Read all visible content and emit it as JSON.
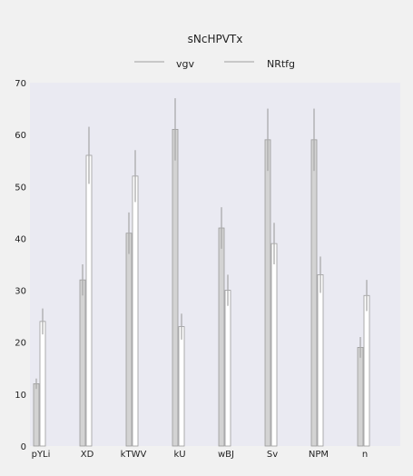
{
  "chart_data": {
    "type": "bar",
    "title": "sNcHPVTx",
    "xlabel": "",
    "ylabel": "",
    "ylim": [
      0,
      70
    ],
    "yticks": [
      0,
      10,
      20,
      30,
      40,
      50,
      60,
      70
    ],
    "grid": false,
    "legend_position": "top-center",
    "categories": [
      "pYLi",
      "XD",
      "kTWV",
      "kU",
      "wBJ",
      "Sv",
      "NPM",
      "n"
    ],
    "series": [
      {
        "name": "vgv",
        "color": "#d3d3d3",
        "values": [
          12,
          32,
          41,
          61,
          42,
          59,
          59,
          19
        ],
        "errors": [
          1,
          3,
          4,
          6,
          4,
          6,
          6,
          2
        ]
      },
      {
        "name": "NRtfg",
        "color": "#ffffff",
        "values": [
          24,
          56,
          52,
          23,
          30,
          39,
          33,
          29
        ],
        "errors": [
          2.5,
          5.5,
          5,
          2.5,
          3,
          4,
          3.5,
          3
        ]
      }
    ]
  }
}
